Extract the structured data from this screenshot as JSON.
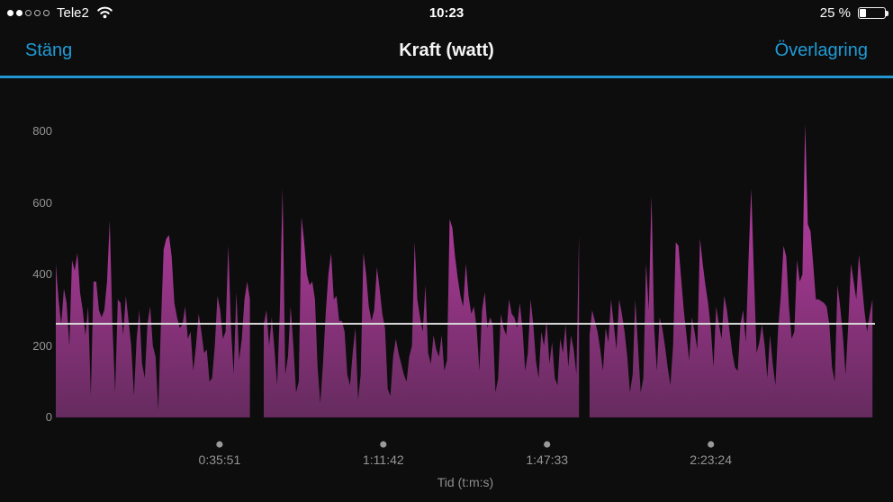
{
  "status_bar": {
    "carrier": "Tele2",
    "signal_filled_dots": 2,
    "signal_total_dots": 5,
    "time": "10:23",
    "battery_percent_label": "25 %",
    "battery_percent": 25
  },
  "nav_bar": {
    "close_label": "Stäng",
    "title": "Kraft (watt)",
    "overlay_label": "Överlagring"
  },
  "colors": {
    "background": "#0d0d0d",
    "accent_blue": "#1f9bd7",
    "separator_blue": "#2396d2",
    "area_top": "#bf42ab",
    "area_mid": "#a1378f",
    "area_bottom": "#652b5e",
    "average_line": "#d6d6d6",
    "axis_text": "#949494",
    "tick_dot": "#9a9a9a"
  },
  "chart_data": {
    "type": "area",
    "title": "Kraft (watt)",
    "xlabel": "Tid (t:m:s)",
    "ylabel": "",
    "y_unit": "watt",
    "x_unit": "seconds",
    "ylim": [
      0,
      800
    ],
    "y_ticks": [
      0,
      200,
      400,
      600,
      800
    ],
    "x_range_s": [
      0,
      10760
    ],
    "x_ticks": [
      {
        "t": 2151,
        "label": "0:35:51"
      },
      {
        "t": 4302,
        "label": "1:11:42"
      },
      {
        "t": 6453,
        "label": "1:47:33"
      },
      {
        "t": 8604,
        "label": "2:23:24"
      }
    ],
    "average_watt": 262,
    "grid": false,
    "segments": [
      {
        "start_s": 0,
        "step_s": 35.4,
        "watts": [
          430,
          330,
          260,
          360,
          320,
          200,
          440,
          410,
          460,
          350,
          300,
          230,
          310,
          60,
          380,
          380,
          300,
          280,
          300,
          380,
          550,
          260,
          70,
          330,
          320,
          230,
          340,
          270,
          200,
          60,
          220,
          300,
          150,
          110,
          260,
          310,
          200,
          170,
          20,
          260,
          470,
          500,
          510,
          450,
          320,
          280,
          250,
          260,
          310,
          220,
          240,
          130,
          200,
          290,
          240,
          180,
          190,
          100,
          110,
          200,
          340,
          300,
          220,
          240,
          480,
          250,
          120,
          350,
          160,
          220,
          330,
          380,
          330
        ]
      },
      {
        "start_s": 2731,
        "step_s": 35.4,
        "watts": [
          260,
          300,
          200,
          280,
          190,
          90,
          300,
          640,
          120,
          170,
          310,
          200,
          70,
          100,
          560,
          490,
          400,
          370,
          380,
          330,
          140,
          40,
          150,
          290,
          400,
          460,
          330,
          340,
          270,
          270,
          240,
          120,
          90,
          180,
          250,
          50,
          120,
          460,
          400,
          310,
          270,
          300,
          420,
          360,
          290,
          250,
          80,
          60,
          170,
          220,
          180,
          150,
          120,
          100,
          170,
          200,
          490,
          330,
          280,
          240,
          370,
          180,
          150,
          230,
          190,
          170,
          230,
          130,
          160,
          555,
          530,
          450,
          390,
          340,
          310,
          430,
          340,
          290,
          310,
          250,
          130,
          300,
          350,
          250,
          280,
          260,
          70,
          110,
          290,
          250,
          230,
          330,
          290,
          280,
          250,
          320,
          250,
          130,
          180,
          330,
          260,
          160,
          110,
          240,
          200,
          270,
          150,
          210,
          110,
          90,
          220,
          180,
          260,
          140,
          230,
          190,
          120,
          510
        ]
      },
      {
        "start_s": 7010,
        "step_s": 35.4,
        "watts": [
          230,
          300,
          270,
          240,
          190,
          130,
          250,
          210,
          330,
          260,
          190,
          330,
          290,
          240,
          170,
          70,
          120,
          330,
          200,
          70,
          110,
          430,
          300,
          620,
          250,
          130,
          280,
          250,
          200,
          140,
          90,
          200,
          490,
          480,
          390,
          300,
          230,
          160,
          280,
          240,
          190,
          500,
          430,
          370,
          320,
          250,
          140,
          310,
          260,
          220,
          340,
          300,
          240,
          180,
          140,
          130,
          260,
          300,
          210,
          440,
          640,
          400,
          180,
          210,
          260,
          200,
          110,
          230,
          150,
          90,
          250,
          340,
          480,
          450,
          310,
          220,
          240,
          440,
          380,
          400,
          820,
          540,
          520,
          430,
          330,
          330,
          325,
          320,
          310,
          260,
          140,
          100,
          370,
          310,
          230,
          120,
          260,
          430,
          380,
          330,
          455,
          380,
          300,
          240,
          290,
          330
        ]
      }
    ]
  }
}
